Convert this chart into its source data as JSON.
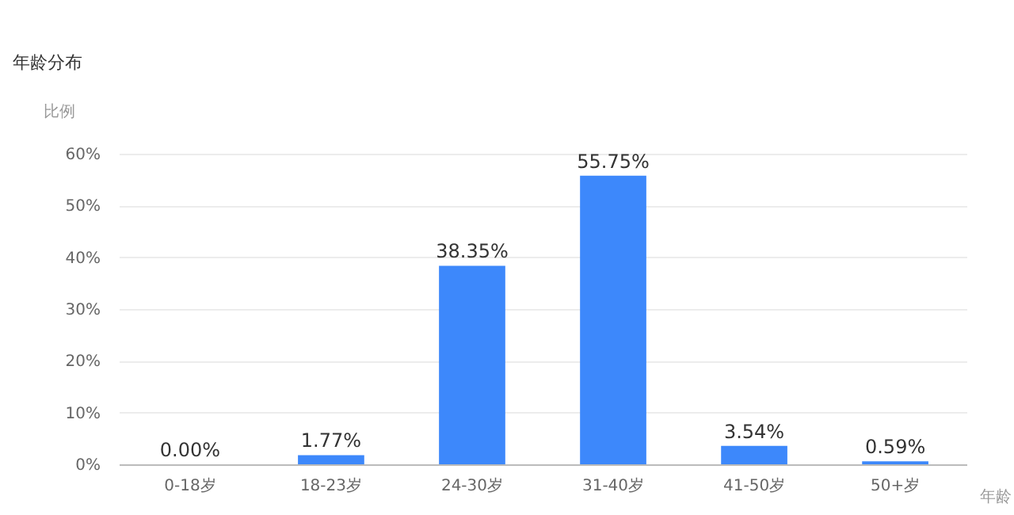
{
  "chart_data": {
    "type": "bar",
    "title": "年龄分布",
    "ylabel": "比例",
    "xlabel": "年龄",
    "categories": [
      "0-18岁",
      "18-23岁",
      "24-30岁",
      "31-40岁",
      "41-50岁",
      "50+岁"
    ],
    "values": [
      0.0,
      1.77,
      38.35,
      55.75,
      3.54,
      0.59
    ],
    "value_labels": [
      "0.00%",
      "1.77%",
      "38.35%",
      "55.75%",
      "3.54%",
      "0.59%"
    ],
    "color": "#3d88fb",
    "ylim": [
      0,
      60
    ],
    "yticks": [
      {
        "value": 0,
        "label": "0%"
      },
      {
        "value": 10,
        "label": "10%"
      },
      {
        "value": 20,
        "label": "20%"
      },
      {
        "value": 30,
        "label": "30%"
      },
      {
        "value": 40,
        "label": "40%"
      },
      {
        "value": 50,
        "label": "50%"
      },
      {
        "value": 60,
        "label": "60%"
      }
    ],
    "grid": "y"
  }
}
